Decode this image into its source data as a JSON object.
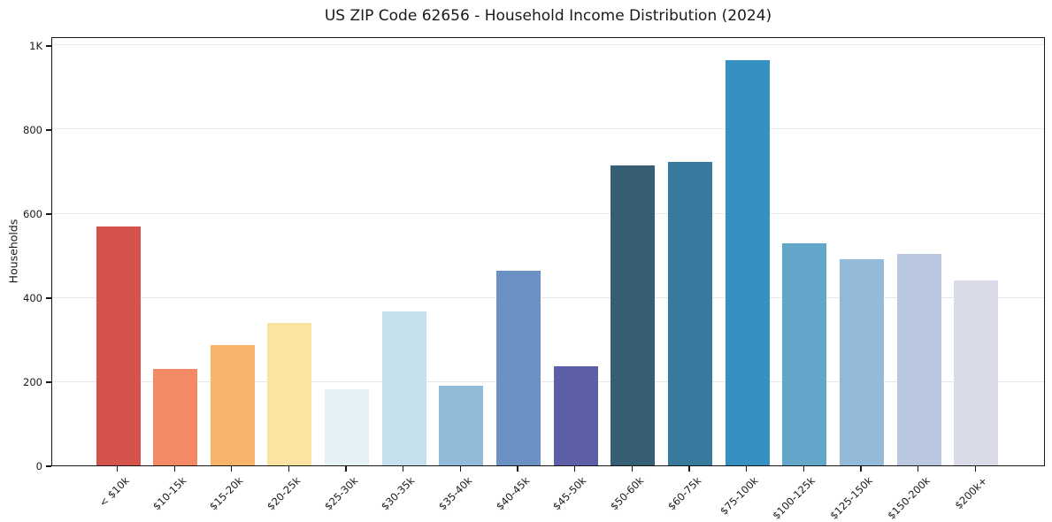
{
  "chart_data": {
    "type": "bar",
    "title": "US ZIP Code 62656 - Household Income Distribution (2024)",
    "xlabel": "",
    "ylabel": "Households",
    "categories": [
      "< $10k",
      "$10-15k",
      "$15-20k",
      "$20-25k",
      "$25-30k",
      "$30-35k",
      "$35-40k",
      "$40-45k",
      "$45-50k",
      "$50-60k",
      "$60-75k",
      "$75-100k",
      "$100-125k",
      "$125-150k",
      "$150-200k",
      "$200k+"
    ],
    "values": [
      568,
      230,
      287,
      340,
      181,
      367,
      190,
      463,
      236,
      714,
      722,
      965,
      529,
      490,
      503,
      440
    ],
    "bar_colors": [
      "#d4544c",
      "#f48a65",
      "#fab36c",
      "#fce4a0",
      "#e4f2f6",
      "#c4e0ec",
      "#91bbd9",
      "#6b90c4",
      "#5c5fa7",
      "#365f75",
      "#38799e",
      "#3690c1",
      "#62a7c9",
      "#94bad9",
      "#b9c7e0",
      "#d9dbe8"
    ],
    "yticks": {
      "values": [
        0,
        200,
        400,
        600,
        800,
        1000
      ],
      "labels": [
        "0",
        "200",
        "400",
        "600",
        "800",
        "1K"
      ]
    },
    "ylim": [
      0,
      1021
    ],
    "grid": "horizontal-only",
    "legend": "none",
    "x_tick_rotation_deg": 45,
    "plot_background": "#ffffff"
  },
  "style": {
    "spine_color": "#161616",
    "grid_color": "#e8e8ec",
    "text_color": "#1a1a1a",
    "background": "#ffffff"
  }
}
